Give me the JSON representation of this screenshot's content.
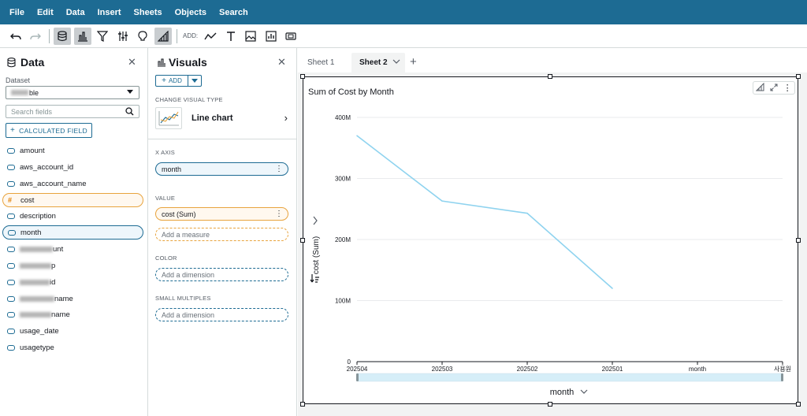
{
  "menubar": {
    "items": [
      "File",
      "Edit",
      "Data",
      "Insert",
      "Sheets",
      "Objects",
      "Search"
    ]
  },
  "toolbar": {
    "add_label": "ADD:",
    "icons": [
      "undo-icon",
      "redo-icon",
      "dataset-icon",
      "visualize-icon",
      "filter-icon",
      "parameters-icon",
      "insights-icon",
      "autograph-icon",
      "add-line-chart-icon",
      "add-text-icon",
      "add-image-icon",
      "add-insight-icon",
      "add-control-icon"
    ]
  },
  "data_panel": {
    "title": "Data",
    "dataset_label": "Dataset",
    "dataset_value_suffix": "ble",
    "search_placeholder": "Search fields",
    "calculated_field_label": "CALCULATED FIELD",
    "fields": [
      {
        "name": "amount",
        "type": "dimension"
      },
      {
        "name": "aws_account_id",
        "type": "dimension"
      },
      {
        "name": "aws_account_name",
        "type": "dimension"
      },
      {
        "name": "cost",
        "type": "measure",
        "selected": true
      },
      {
        "name": "description",
        "type": "dimension"
      },
      {
        "name": "month",
        "type": "dimension",
        "selected": true
      },
      {
        "name": "unt",
        "type": "dimension",
        "redacted_prefix": true
      },
      {
        "name": "p",
        "type": "dimension",
        "redacted_prefix": true
      },
      {
        "name": "id",
        "type": "dimension",
        "redacted_prefix": true
      },
      {
        "name": "name",
        "type": "dimension",
        "redacted_prefix": true
      },
      {
        "name": "name",
        "type": "dimension",
        "redacted_prefix": true
      },
      {
        "name": "usage_date",
        "type": "dimension"
      },
      {
        "name": "usagetype",
        "type": "dimension"
      }
    ]
  },
  "visuals_panel": {
    "title": "Visuals",
    "add_label": "ADD",
    "change_visual_type_label": "CHANGE VISUAL TYPE",
    "visual_type": "Line chart",
    "x_axis_label": "X AXIS",
    "x_axis_field": "month",
    "value_label": "VALUE",
    "value_field": "cost (Sum)",
    "add_measure_placeholder": "Add a measure",
    "color_label": "COLOR",
    "color_placeholder": "Add a dimension",
    "small_multiples_label": "SMALL MULTIPLES",
    "small_multiples_placeholder": "Add a dimension"
  },
  "sheets": {
    "tabs": [
      {
        "label": "Sheet 1",
        "active": false
      },
      {
        "label": "Sheet 2",
        "active": true
      }
    ]
  },
  "visual": {
    "title": "Sum of Cost by Month",
    "x_axis_title": "month"
  },
  "chart_data": {
    "type": "line",
    "title": "Sum of Cost by Month",
    "xlabel": "month",
    "ylabel": "cost (Sum)",
    "categories": [
      "202504",
      "202503",
      "202502",
      "202501",
      "month",
      "사용원"
    ],
    "values": [
      370000000,
      263000000,
      243000000,
      120000000,
      null,
      null
    ],
    "yticks": [
      {
        "value": 0,
        "label": "0"
      },
      {
        "value": 100000000,
        "label": "100M"
      },
      {
        "value": 200000000,
        "label": "200M"
      },
      {
        "value": 300000000,
        "label": "300M"
      },
      {
        "value": 400000000,
        "label": "400M"
      }
    ],
    "ylim": [
      0,
      400000000
    ],
    "grid": true,
    "line_color": "#8fd3ef"
  }
}
